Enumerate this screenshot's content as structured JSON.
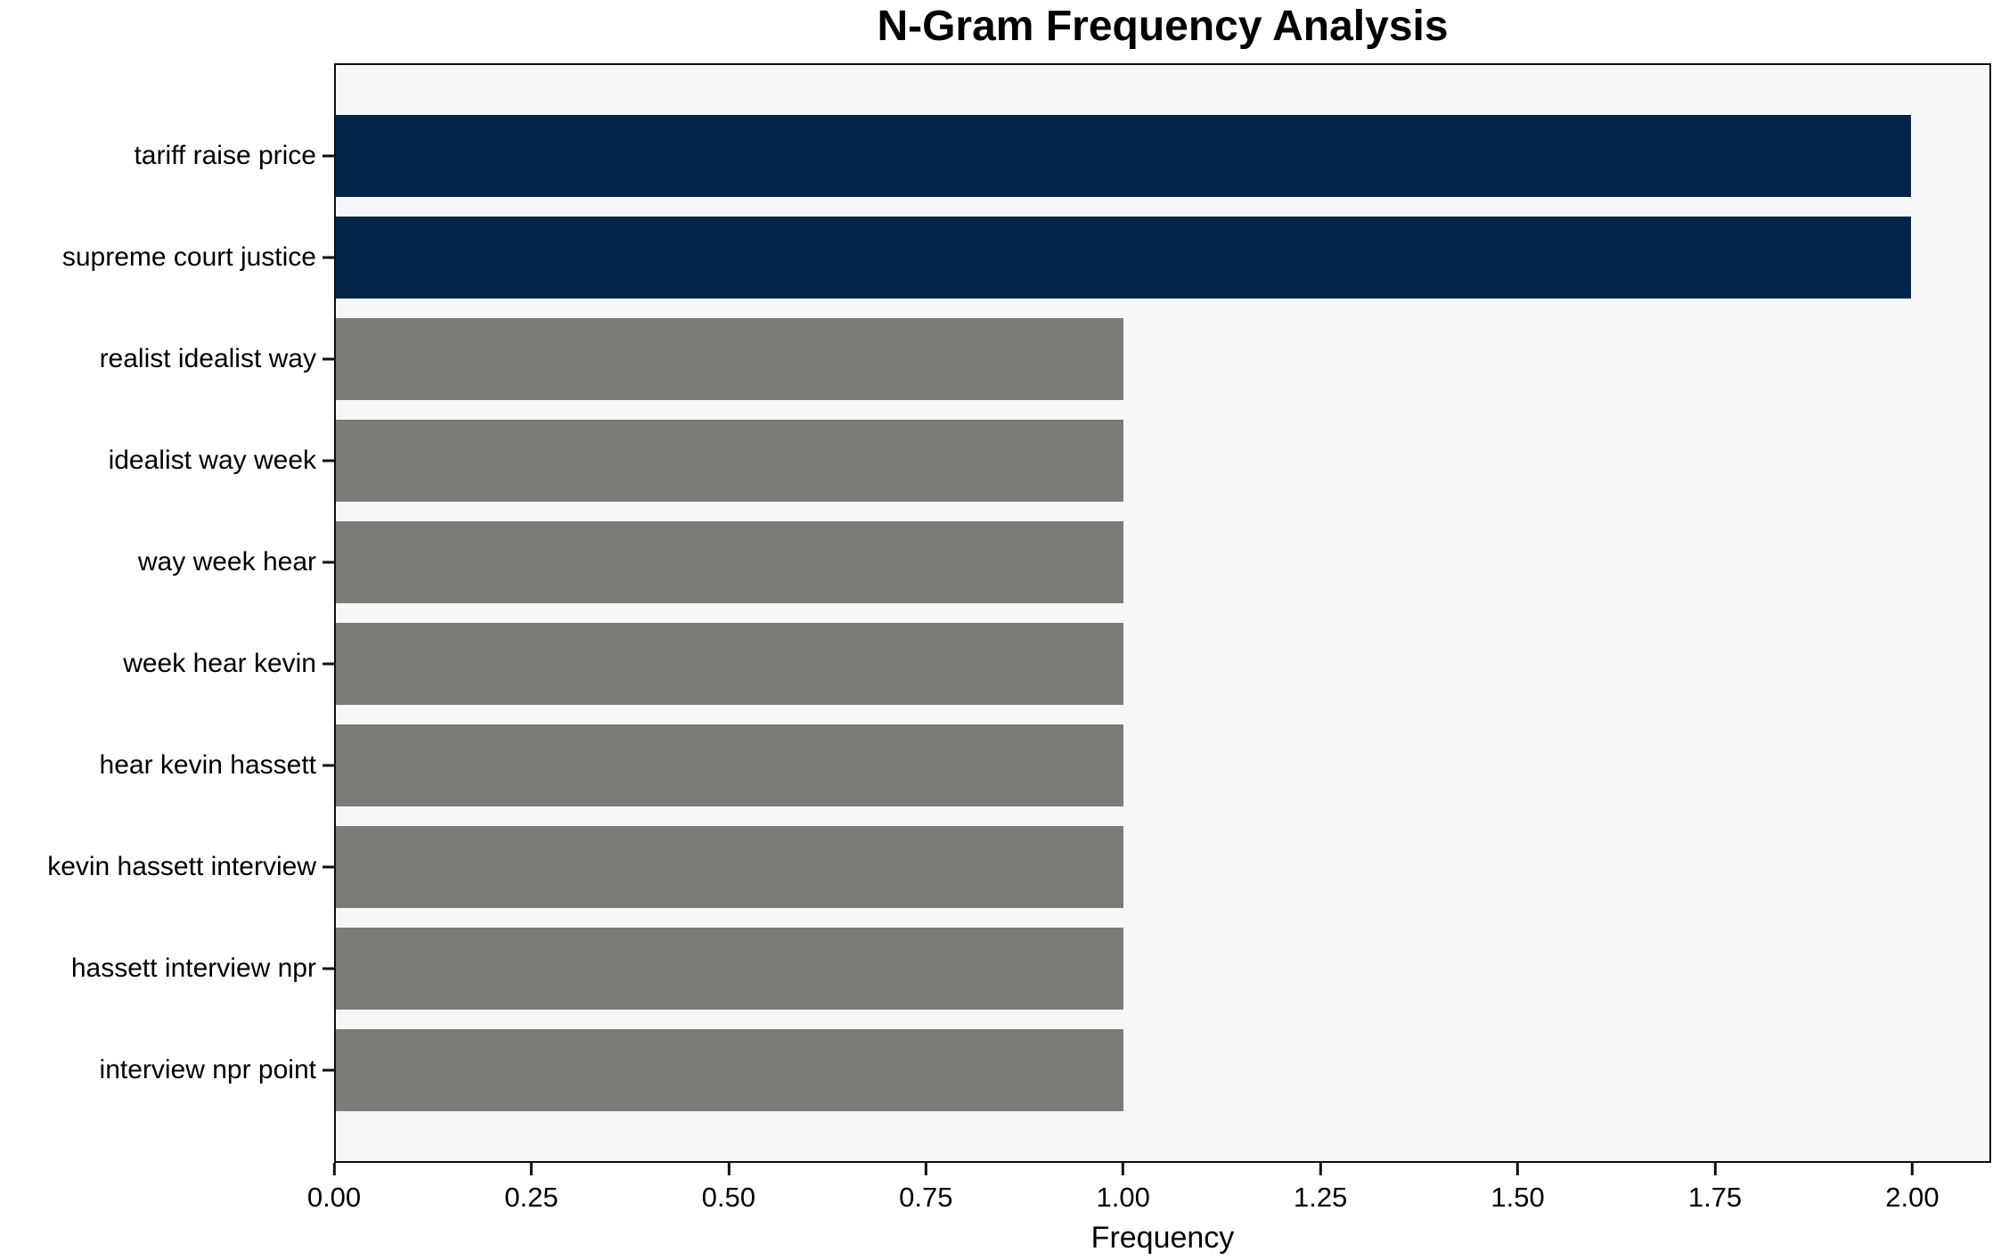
{
  "chart_data": {
    "type": "bar",
    "orientation": "horizontal",
    "title": "N-Gram Frequency Analysis",
    "xlabel": "Frequency",
    "ylabel": "",
    "categories": [
      "tariff raise price",
      "supreme court justice",
      "realist idealist way",
      "idealist way week",
      "way week hear",
      "week hear kevin",
      "hear kevin hassett",
      "kevin hassett interview",
      "hassett interview npr",
      "interview npr point"
    ],
    "values": [
      2,
      2,
      1,
      1,
      1,
      1,
      1,
      1,
      1,
      1
    ],
    "bar_colors": [
      "#02254a",
      "#02254a",
      "#7b7b78",
      "#7b7b78",
      "#7b7b78",
      "#7b7b78",
      "#7b7b78",
      "#7b7b78",
      "#7b7b78",
      "#7b7b78"
    ],
    "highlight_color": "#02254a",
    "default_color": "#7b7b78",
    "xlim": [
      0,
      2.1
    ],
    "xtick_values": [
      0,
      0.25,
      0.5,
      0.75,
      1.0,
      1.25,
      1.5,
      1.75,
      2.0
    ],
    "xtick_labels": [
      "0.00",
      "0.25",
      "0.50",
      "0.75",
      "1.00",
      "1.25",
      "1.50",
      "1.75",
      "2.00"
    ],
    "grid": "off",
    "legend": "none",
    "plot_background": "#f7f7f7",
    "figure_background": "#ffffff",
    "spine_color": "#0f0f0f"
  }
}
